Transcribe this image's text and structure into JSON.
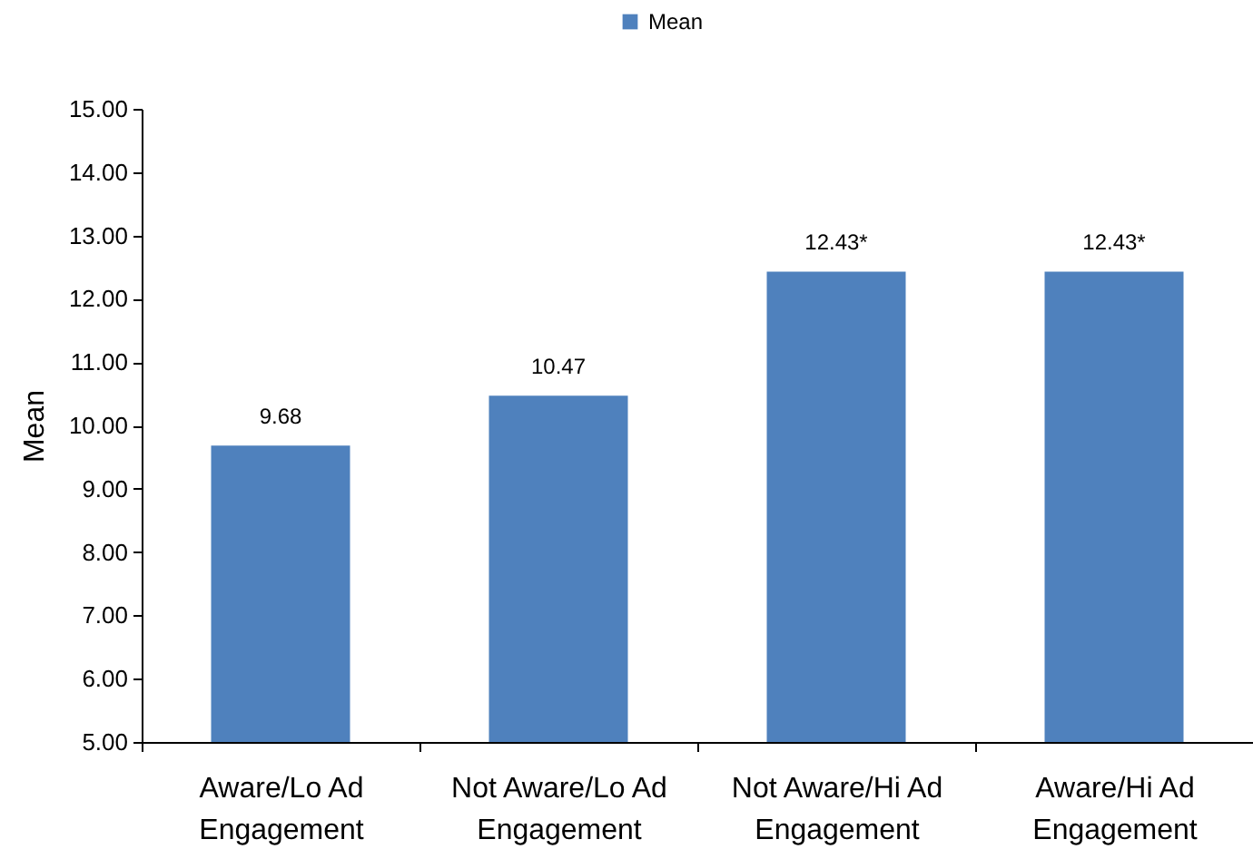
{
  "chart_data": {
    "type": "bar",
    "categories": [
      "Aware/Lo Ad Engagement",
      "Not Aware/Lo Ad Engagement",
      "Not Aware/Hi Ad Engagement",
      "Aware/Hi Ad Engagement"
    ],
    "series": [
      {
        "name": "Mean",
        "color": "#4f81bd",
        "values": [
          9.68,
          10.47,
          12.43,
          12.43
        ],
        "value_labels": [
          "9.68",
          "10.47",
          "12.43*",
          "12.43*"
        ]
      }
    ],
    "ylabel": "Mean",
    "ylim": [
      5,
      15
    ],
    "yticks": [
      {
        "value": 5,
        "label": "5.00"
      },
      {
        "value": 6,
        "label": "6.00"
      },
      {
        "value": 7,
        "label": "7.00"
      },
      {
        "value": 8,
        "label": "8.00"
      },
      {
        "value": 9,
        "label": "9.00"
      },
      {
        "value": 10,
        "label": "10.00"
      },
      {
        "value": 11,
        "label": "11.00"
      },
      {
        "value": 12,
        "label": "12.00"
      },
      {
        "value": 13,
        "label": "13.00"
      },
      {
        "value": 14,
        "label": "14.00"
      },
      {
        "value": 15,
        "label": "15.00"
      }
    ],
    "grid": false,
    "legend": "top"
  }
}
